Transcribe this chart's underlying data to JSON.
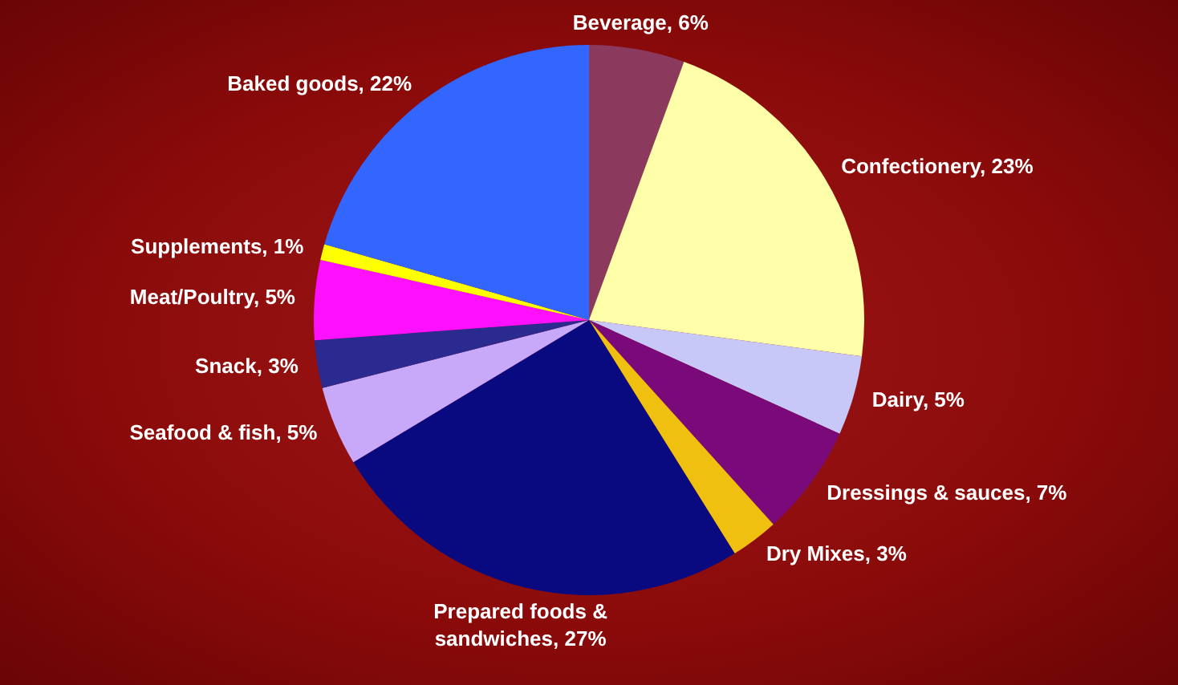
{
  "chart_data": {
    "type": "pie",
    "categories": [
      "Beverage",
      "Confectionery",
      "Dairy",
      "Dressings & sauces",
      "Dry Mixes",
      "Prepared foods & sandwiches",
      "Seafood & fish",
      "Snack",
      "Meat/Poultry",
      "Supplements",
      "Baked goods"
    ],
    "values": [
      6,
      23,
      5,
      7,
      3,
      27,
      5,
      3,
      5,
      1,
      22
    ],
    "value_labels": [
      "6%",
      "23%",
      "5%",
      "7%",
      "3%",
      "27%",
      "5%",
      "3%",
      "5%",
      "1%",
      "22%"
    ],
    "colors": [
      "#8b3a5e",
      "#ffffaa",
      "#c8c8f8",
      "#7a0a7a",
      "#f0c010",
      "#0a0a80",
      "#c8a8f8",
      "#2a2a90",
      "#ff10ff",
      "#ffff00",
      "#3366ff"
    ]
  }
}
